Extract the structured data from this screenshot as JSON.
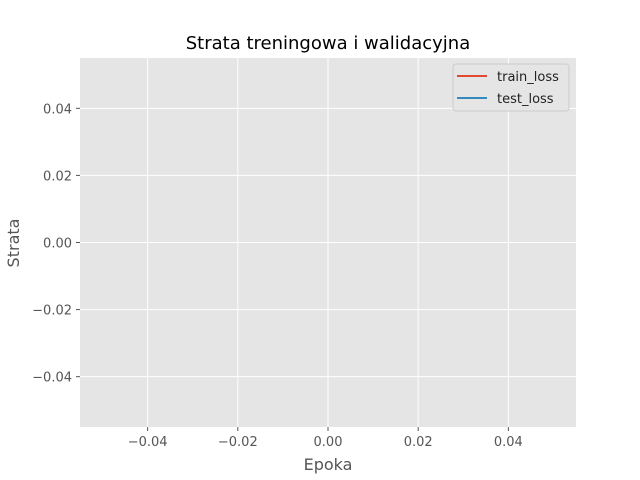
{
  "chart_data": {
    "type": "line",
    "title": "Strata treningowa i walidacyjna",
    "xlabel": "Epoka",
    "ylabel": "Strata",
    "xlim": [
      -0.055,
      0.055
    ],
    "ylim": [
      -0.055,
      0.055
    ],
    "xticks": [
      -0.04,
      -0.02,
      0.0,
      0.02,
      0.04
    ],
    "xtick_labels": [
      "−0.04",
      "−0.02",
      "0.00",
      "0.02",
      "0.04"
    ],
    "yticks": [
      0.04,
      0.02,
      0.0,
      -0.02,
      -0.04
    ],
    "ytick_labels": [
      "0.04",
      "0.02",
      "0.00",
      "−0.02",
      "−0.04"
    ],
    "grid": true,
    "legend_position": "top-right",
    "series": [
      {
        "name": "train_loss",
        "color": "#E24A33",
        "x": [],
        "y": []
      },
      {
        "name": "test_loss",
        "color": "#348ABD",
        "x": [],
        "y": []
      }
    ]
  }
}
